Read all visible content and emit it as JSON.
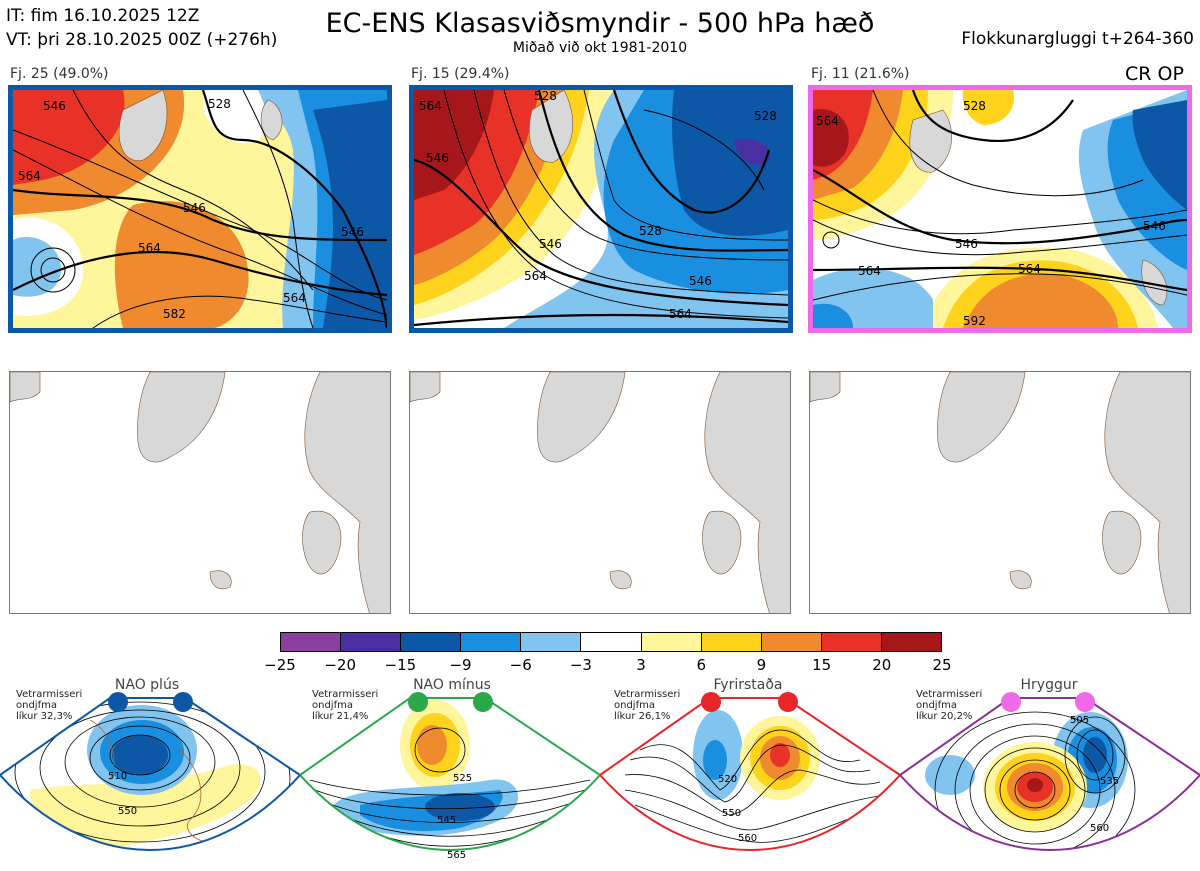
{
  "header": {
    "it_line": "IT: fim 16.10.2025 12Z",
    "vt_line": "VT: þri 28.10.2025 00Z  (+276h)",
    "title": "EC-ENS Klasasviðsmyndir - 500 hPa hæð",
    "subtitle": "Miðað við okt 1981-2010",
    "window": "Flokkunargluggi t+264-360"
  },
  "clusters": [
    {
      "label": "Fj. 25 (49.0%)",
      "members": 25,
      "percent": 49.0,
      "border_color": "#0d57a7",
      "contours": [
        "546",
        "528",
        "564",
        "546",
        "564",
        "582",
        "564",
        "546"
      ]
    },
    {
      "label": "Fj. 15 (29.4%)",
      "members": 15,
      "percent": 29.4,
      "border_color": "#0d57a7",
      "contours": [
        "546",
        "528",
        "564",
        "528",
        "546",
        "564",
        "546",
        "564",
        "528"
      ]
    },
    {
      "label": "Fj. 11 (21.6%)",
      "members": 11,
      "percent": 21.6,
      "border_color": "#ef6ae8",
      "contours": [
        "564",
        "528",
        "546",
        "546",
        "564",
        "564",
        "592"
      ]
    }
  ],
  "regime_tag": "CR OP",
  "colorbar": {
    "ticks": [
      "−25",
      "−20",
      "−15",
      "−9",
      "−6",
      "−3",
      "3",
      "6",
      "9",
      "15",
      "20",
      "25"
    ],
    "colors": [
      "#8b3fa0",
      "#4a2fa0",
      "#0d57a7",
      "#1a8fe0",
      "#80c4ef",
      "#ffffff",
      "#fff59a",
      "#ffd21c",
      "#f08a2e",
      "#e83228",
      "#a6171c"
    ]
  },
  "regimes": [
    {
      "name": "NAO plús",
      "note": [
        "Vetrarmisseri",
        "ondjfma",
        "líkur 32,3%"
      ],
      "color": "#0d57a7",
      "contours": [
        "510",
        "550"
      ]
    },
    {
      "name": "NAO mínus",
      "note": [
        "Vetrarmisseri",
        "ondjfma",
        "líkur 21,4%"
      ],
      "color": "#2aa84a",
      "contours": [
        "525",
        "545",
        "565"
      ]
    },
    {
      "name": "Fyrirstaða",
      "note": [
        "Vetrarmisseri",
        "ondjfma",
        "líkur 26,1%"
      ],
      "color": "#e8262a",
      "contours": [
        "520",
        "550",
        "560"
      ]
    },
    {
      "name": "Hryggur",
      "note": [
        "Vetrarmisseri",
        "ondjfma",
        "líkur 20,2%"
      ],
      "color": "#8b2f9a",
      "contours": [
        "505",
        "535",
        "560"
      ]
    }
  ]
}
